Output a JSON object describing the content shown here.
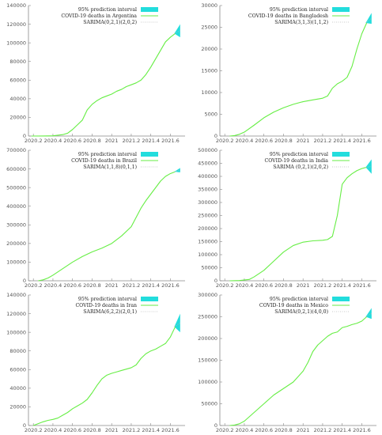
{
  "colors": {
    "series": "#66ee44",
    "interval": "#22dddd",
    "sarima": "#bbbbbb",
    "axis": "#888888"
  },
  "chart_data": [
    {
      "type": "line",
      "legend": [
        "95% prediction interval",
        "COVID-19 deaths in Argentina",
        "SARIMA(0,2,1)(2,0,2)"
      ],
      "xlim": [
        2020.15,
        2021.75
      ],
      "ylim": [
        0,
        140000
      ],
      "xticks": [
        "2020.2",
        "2020.4",
        "2020.6",
        "2020.8",
        "2021",
        "2021.2",
        "2021.4",
        "2021.6"
      ],
      "yticks": [
        "0",
        "20000",
        "40000",
        "60000",
        "80000",
        "100000",
        "120000",
        "140000"
      ],
      "x": [
        2020.18,
        2020.3,
        2020.4,
        2020.5,
        2020.55,
        2020.6,
        2020.65,
        2020.7,
        2020.75,
        2020.8,
        2020.85,
        2020.9,
        2020.95,
        2021,
        2021.05,
        2021.1,
        2021.15,
        2021.2,
        2021.25,
        2021.3,
        2021.35,
        2021.4,
        2021.45,
        2021.5,
        2021.55,
        2021.6,
        2021.65
      ],
      "y": [
        0,
        50,
        300,
        1500,
        3000,
        7000,
        12000,
        17000,
        28000,
        34000,
        38000,
        41000,
        43000,
        45000,
        48000,
        50000,
        53000,
        55000,
        57000,
        60000,
        66000,
        74000,
        83000,
        92000,
        101000,
        106000,
        110000
      ],
      "interval": {
        "x_start": 2021.64,
        "x_end": 2021.7,
        "y_start": 110000,
        "upper": 120000,
        "lower": 106000
      }
    },
    {
      "type": "line",
      "legend": [
        "95% prediction interval",
        "COVID-19 deaths in Bangladesh",
        "SARIMA(3,1,3)(1,1,2)"
      ],
      "xlim": [
        2020.15,
        2021.75
      ],
      "ylim": [
        0,
        30000
      ],
      "xticks": [
        "2020.2",
        "2020.4",
        "2020.6",
        "2020.8",
        "2021",
        "2021.2",
        "2021.4",
        "2021.6"
      ],
      "yticks": [
        "0",
        "5000",
        "10000",
        "15000",
        "20000",
        "25000",
        "30000"
      ],
      "x": [
        2020.25,
        2020.3,
        2020.35,
        2020.4,
        2020.5,
        2020.6,
        2020.7,
        2020.8,
        2020.9,
        2021,
        2021.1,
        2021.2,
        2021.25,
        2021.3,
        2021.35,
        2021.4,
        2021.45,
        2021.5,
        2021.55,
        2021.6,
        2021.65
      ],
      "y": [
        0,
        100,
        400,
        900,
        2500,
        4200,
        5500,
        6500,
        7300,
        7900,
        8300,
        8700,
        9200,
        11000,
        12000,
        12600,
        13500,
        16000,
        20000,
        23500,
        26000
      ],
      "interval": {
        "x_start": 2021.64,
        "x_end": 2021.7,
        "y_start": 26000,
        "upper": 28300,
        "lower": 25800
      }
    },
    {
      "type": "line",
      "legend": [
        "95% prediction interval",
        "COVID-19 deaths in Brazil",
        "SARIMA(1,1,8)(0,1,1)"
      ],
      "xlim": [
        2020.15,
        2021.75
      ],
      "ylim": [
        0,
        700000
      ],
      "xticks": [
        "2020.2",
        "2020.4",
        "2020.6",
        "2020.8",
        "2021",
        "2021.2",
        "2021.4",
        "2021.6"
      ],
      "yticks": [
        "0",
        "100000",
        "200000",
        "300000",
        "400000",
        "500000",
        "600000",
        "700000"
      ],
      "x": [
        2020.25,
        2020.3,
        2020.35,
        2020.4,
        2020.5,
        2020.6,
        2020.7,
        2020.8,
        2020.9,
        2021,
        2021.1,
        2021.2,
        2021.25,
        2021.3,
        2021.35,
        2021.4,
        2021.45,
        2021.5,
        2021.55,
        2021.6,
        2021.65
      ],
      "y": [
        0,
        5000,
        15000,
        30000,
        65000,
        100000,
        130000,
        155000,
        175000,
        200000,
        240000,
        290000,
        340000,
        390000,
        430000,
        465000,
        500000,
        535000,
        560000,
        575000,
        585000
      ],
      "interval": {
        "x_start": 2021.64,
        "x_end": 2021.7,
        "y_start": 585000,
        "upper": 605000,
        "lower": 582000
      }
    },
    {
      "type": "line",
      "legend": [
        "95% prediction interval",
        "COVID-19 deaths in India",
        "SARIMA (0,2,1)(2,0,2)"
      ],
      "xlim": [
        2020.15,
        2021.75
      ],
      "ylim": [
        0,
        500000
      ],
      "xticks": [
        "2020.2",
        "2020.4",
        "2020.6",
        "2020.8",
        "2021",
        "2021.2",
        "2021.4",
        "2021.6"
      ],
      "yticks": [
        "0",
        "50000",
        "100000",
        "150000",
        "200000",
        "250000",
        "300000",
        "350000",
        "400000",
        "450000",
        "500000"
      ],
      "x": [
        2020.25,
        2020.35,
        2020.45,
        2020.5,
        2020.6,
        2020.7,
        2020.8,
        2020.9,
        2021,
        2021.1,
        2021.2,
        2021.25,
        2021.3,
        2021.35,
        2021.4,
        2021.45,
        2021.5,
        2021.55,
        2021.6,
        2021.65
      ],
      "y": [
        0,
        1000,
        5000,
        15000,
        40000,
        75000,
        110000,
        135000,
        148000,
        153000,
        155000,
        158000,
        170000,
        250000,
        370000,
        395000,
        410000,
        422000,
        430000,
        435000
      ],
      "interval": {
        "x_start": 2021.64,
        "x_end": 2021.7,
        "y_start": 435000,
        "upper": 465000,
        "lower": 410000
      }
    },
    {
      "type": "line",
      "legend": [
        "95% prediction interval",
        "COVID-19 deaths in Iran",
        "SARIMA(6,2,2)(2,0,1)"
      ],
      "xlim": [
        2020.15,
        2021.75
      ],
      "ylim": [
        0,
        140000
      ],
      "xticks": [
        "2020.2",
        "2020.4",
        "2020.6",
        "2020.8",
        "2021",
        "2021.2",
        "2021.4",
        "2021.6"
      ],
      "yticks": [
        "0",
        "20000",
        "40000",
        "60000",
        "80000",
        "100000",
        "120000",
        "140000"
      ],
      "x": [
        2020.2,
        2020.25,
        2020.3,
        2020.35,
        2020.4,
        2020.45,
        2020.5,
        2020.55,
        2020.6,
        2020.65,
        2020.7,
        2020.75,
        2020.8,
        2020.85,
        2020.9,
        2020.95,
        2021,
        2021.05,
        2021.1,
        2021.15,
        2021.2,
        2021.25,
        2021.3,
        2021.35,
        2021.4,
        2021.45,
        2021.5,
        2021.55,
        2021.6,
        2021.65
      ],
      "y": [
        0,
        2000,
        4000,
        5500,
        6500,
        8000,
        11000,
        14000,
        18000,
        21000,
        24000,
        28000,
        35000,
        43000,
        50000,
        54000,
        56000,
        57500,
        59000,
        60500,
        62000,
        65000,
        72000,
        77000,
        80000,
        82000,
        85000,
        88000,
        95000,
        106000
      ],
      "interval": {
        "x_start": 2021.64,
        "x_end": 2021.7,
        "y_start": 106000,
        "upper": 120000,
        "lower": 100000
      }
    },
    {
      "type": "line",
      "legend": [
        "95% prediction interval",
        "COVID-19 deaths in Mexico",
        "SARIMA(0,2,1)(4,0,0)"
      ],
      "xlim": [
        2020.15,
        2021.75
      ],
      "ylim": [
        0,
        300000
      ],
      "xticks": [
        "2020.2",
        "2020.4",
        "2020.6",
        "2020.8",
        "2021",
        "2021.2",
        "2021.4",
        "2021.6"
      ],
      "yticks": [
        "0",
        "50000",
        "100000",
        "150000",
        "200000",
        "250000",
        "300000"
      ],
      "x": [
        2020.25,
        2020.3,
        2020.35,
        2020.4,
        2020.45,
        2020.5,
        2020.6,
        2020.7,
        2020.8,
        2020.9,
        2021,
        2021.05,
        2021.1,
        2021.15,
        2021.2,
        2021.25,
        2021.3,
        2021.35,
        2021.4,
        2021.45,
        2021.5,
        2021.55,
        2021.6,
        2021.65
      ],
      "y": [
        0,
        1000,
        4000,
        10000,
        20000,
        30000,
        50000,
        70000,
        85000,
        100000,
        125000,
        145000,
        170000,
        185000,
        195000,
        205000,
        212000,
        215000,
        225000,
        228000,
        232000,
        235000,
        240000,
        250000
      ],
      "interval": {
        "x_start": 2021.64,
        "x_end": 2021.7,
        "y_start": 250000,
        "upper": 270000,
        "lower": 245000
      }
    }
  ]
}
